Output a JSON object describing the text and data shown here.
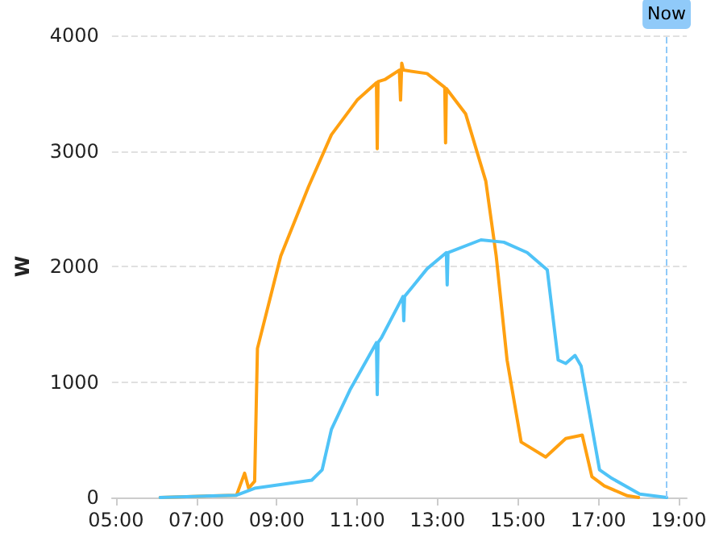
{
  "chart_data": {
    "type": "line",
    "ylabel": "W",
    "xlim": [
      4.9,
      19.2
    ],
    "ylim": [
      0,
      4000
    ],
    "xticks": [
      {
        "value": 5,
        "label": "05:00"
      },
      {
        "value": 7,
        "label": "07:00"
      },
      {
        "value": 9,
        "label": "09:00"
      },
      {
        "value": 11,
        "label": "11:00"
      },
      {
        "value": 13,
        "label": "13:00"
      },
      {
        "value": 15,
        "label": "15:00"
      },
      {
        "value": 17,
        "label": "17:00"
      },
      {
        "value": 19,
        "label": "19:00"
      }
    ],
    "yticks": [
      0,
      1000,
      2000,
      3000,
      4000
    ],
    "grid": "y",
    "marker": "none",
    "line_style": "solid",
    "ref_lines": [
      {
        "axis": "x",
        "value": 18.7,
        "label": "Now",
        "color": "#90caf9",
        "line_style": "dashed"
      }
    ],
    "series": [
      {
        "color": "#ffa010",
        "x": [
          6.1,
          8.0,
          8.2,
          8.3,
          8.45,
          8.52,
          9.1,
          9.79,
          10.36,
          11.0,
          11.48,
          11.5,
          11.52,
          11.7,
          12.05,
          12.08,
          12.11,
          12.15,
          12.74,
          13.18,
          13.2,
          13.22,
          13.7,
          14.2,
          14.46,
          14.73,
          15.08,
          15.27,
          15.69,
          16.19,
          16.6,
          16.84,
          17.15,
          17.72,
          18.0
        ],
        "values": [
          0,
          20,
          210,
          80,
          140,
          1290,
          2090,
          2690,
          3140,
          3440,
          3590,
          3020,
          3600,
          3620,
          3700,
          3440,
          3760,
          3700,
          3670,
          3550,
          3070,
          3540,
          3320,
          2740,
          2090,
          1190,
          480,
          440,
          350,
          510,
          540,
          180,
          100,
          15,
          0
        ]
      },
      {
        "color": "#4fc3f7",
        "x": [
          6.1,
          8.0,
          8.45,
          9.87,
          10.13,
          10.36,
          10.82,
          11.48,
          11.5,
          11.52,
          11.6,
          12.14,
          12.16,
          12.18,
          12.74,
          13.22,
          13.24,
          13.26,
          14.08,
          14.65,
          15.23,
          15.73,
          16.0,
          16.19,
          16.42,
          16.57,
          17.03,
          17.34,
          18.03,
          18.7
        ],
        "values": [
          0,
          20,
          80,
          150,
          240,
          590,
          930,
          1340,
          890,
          1340,
          1380,
          1740,
          1530,
          1740,
          1980,
          2120,
          1840,
          2120,
          2230,
          2210,
          2120,
          1970,
          1190,
          1160,
          1230,
          1140,
          240,
          165,
          30,
          0
        ]
      }
    ]
  }
}
